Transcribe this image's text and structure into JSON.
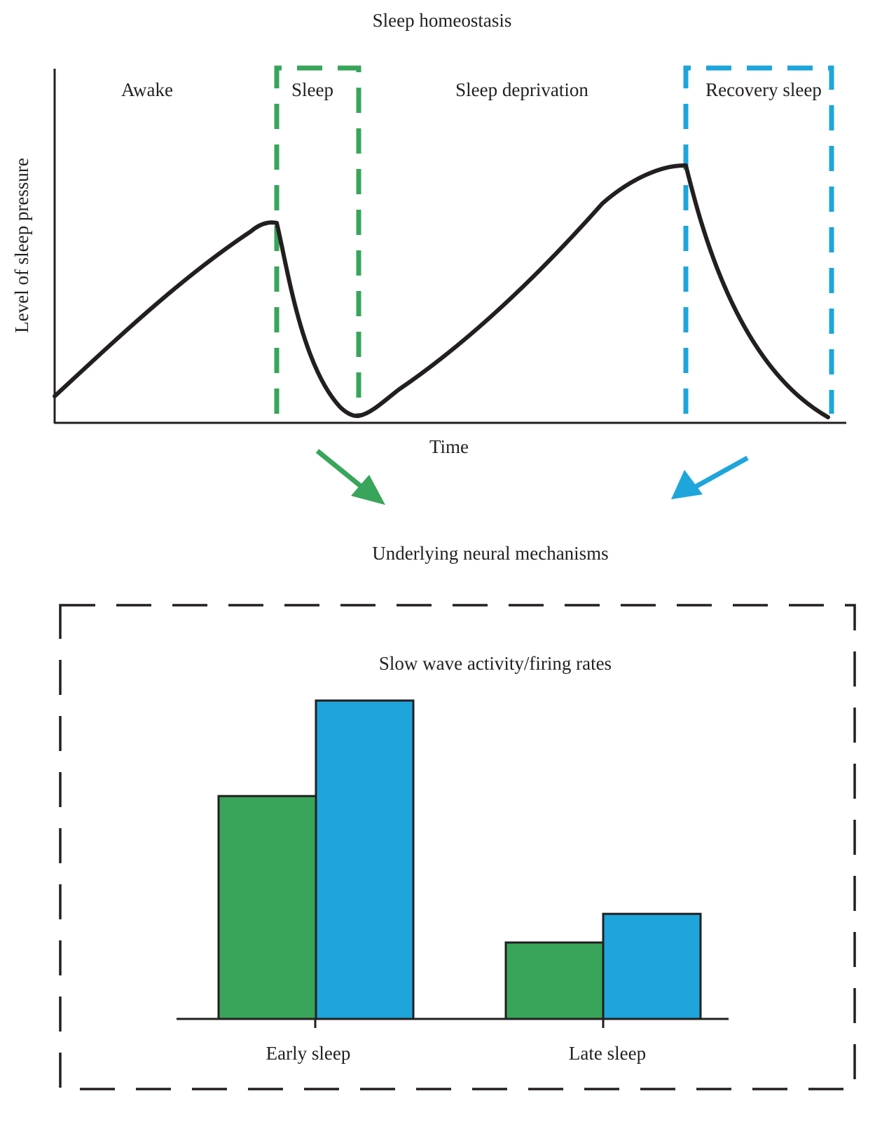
{
  "top": {
    "title": "Sleep homeostasis",
    "y_axis_label": "Level of sleep pressure",
    "x_axis_label": "Time",
    "phases": {
      "awake": "Awake",
      "sleep": "Sleep",
      "deprivation": "Sleep deprivation",
      "recovery": "Recovery sleep"
    }
  },
  "middle": {
    "title": "Underlying neural mechanisms"
  },
  "chart_data": {
    "type": "bar",
    "title": "Slow wave activity/firing rates",
    "categories": [
      "Early sleep",
      "Late sleep"
    ],
    "series": [
      {
        "values": [
          70,
          24
        ]
      },
      {
        "values": [
          100,
          33
        ]
      }
    ],
    "ylim": [
      0,
      100
    ]
  },
  "colors": {
    "sleep": "#38a55a",
    "recovery": "#1ea5dc",
    "line": "#231f20",
    "axis": "#231f20"
  }
}
